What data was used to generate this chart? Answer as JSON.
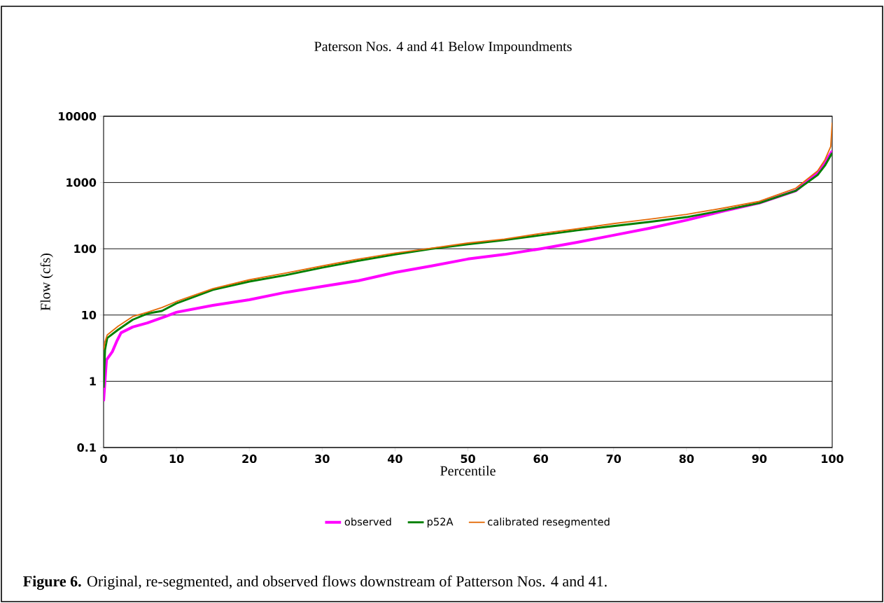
{
  "chart_data": {
    "type": "line",
    "title": "Paterson Nos. 4 and 41 Below Impoundments",
    "xlabel": "Percentile",
    "ylabel": "Flow (cfs)",
    "log": "y",
    "grid": "y",
    "legend": "bottom",
    "marker": "none",
    "line_style": "solid",
    "xlim": [
      0,
      100
    ],
    "xticks": [
      0,
      10,
      20,
      30,
      40,
      50,
      60,
      70,
      80,
      90,
      100
    ],
    "ylim": [
      0.1,
      10000
    ],
    "yticks": [
      0.1,
      1,
      10,
      100,
      1000,
      10000
    ],
    "annotations": [
      "**Figure 6.** Original, re-segmented, and observed flows downstream of Patterson Nos. 4 and 41."
    ],
    "series": [
      {
        "name": "observed",
        "color": "#ff00ff",
        "x": [
          0,
          0.3,
          0.4,
          1.2,
          1.8,
          2.4,
          4,
          6,
          8.5,
          10,
          15,
          20,
          25,
          30,
          35,
          40,
          45,
          50,
          55,
          60,
          65,
          70,
          75,
          80,
          85,
          90,
          95,
          98,
          99,
          100
        ],
        "values": [
          0.5,
          1.5,
          2.1,
          2.8,
          4.0,
          5.4,
          6.6,
          7.6,
          9.5,
          11,
          14,
          17,
          22,
          27,
          33,
          44,
          55,
          70,
          82,
          100,
          125,
          160,
          205,
          270,
          370,
          490,
          750,
          1400,
          2000,
          3000
        ]
      },
      {
        "name": "p52A",
        "color": "#008000",
        "x": [
          0,
          0.2,
          0.5,
          2,
          4,
          6,
          8,
          10,
          15,
          20,
          25,
          30,
          35,
          40,
          45,
          50,
          55,
          60,
          65,
          70,
          75,
          80,
          85,
          90,
          95,
          98,
          99,
          100
        ],
        "values": [
          0.8,
          3,
          4.5,
          6,
          8.5,
          10.5,
          11.5,
          15,
          24,
          32,
          40,
          52,
          66,
          82,
          100,
          117,
          135,
          160,
          190,
          220,
          255,
          300,
          380,
          490,
          750,
          1300,
          1800,
          2800
        ]
      },
      {
        "name": "calibrated resegmented",
        "color": "#e46c0a",
        "x": [
          0,
          0.2,
          0.5,
          2,
          4,
          6,
          8,
          10,
          15,
          20,
          25,
          30,
          35,
          40,
          45,
          50,
          55,
          60,
          65,
          70,
          75,
          80,
          85,
          90,
          95,
          98,
          99,
          99.8,
          100
        ],
        "values": [
          3,
          4,
          5,
          6.8,
          9.5,
          11,
          13,
          16,
          25,
          34,
          43,
          55,
          70,
          86,
          102,
          122,
          140,
          170,
          200,
          240,
          280,
          330,
          410,
          520,
          820,
          1500,
          2200,
          3500,
          8000
        ]
      }
    ]
  }
}
